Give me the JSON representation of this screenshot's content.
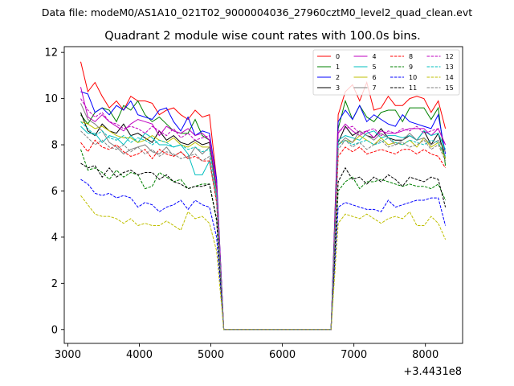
{
  "chart_data": {
    "type": "line",
    "suptitle": "Data file: modeM0/AS1A10_021T02_9000004036_27960cztM0_level2_quad_clean.evt",
    "title": "Quadrant 2 module wise count rates with 100.0s bins.",
    "xlabel": "",
    "ylabel": "",
    "x_offset_label": "+3.4431e8",
    "xlim": [
      2950,
      8520
    ],
    "ylim": [
      -0.6,
      12.25
    ],
    "xticks": [
      3000,
      4000,
      5000,
      6000,
      7000,
      8000
    ],
    "yticks": [
      0,
      2,
      4,
      6,
      8,
      10,
      12
    ],
    "xtick_labels": [
      "3000",
      "4000",
      "5000",
      "6000",
      "7000",
      "8000"
    ],
    "ytick_labels": [
      "0",
      "2",
      "4",
      "6",
      "8",
      "10",
      "12"
    ],
    "grid": false,
    "legend_position": "upper right",
    "x": [
      3180,
      3280,
      3380,
      3480,
      3580,
      3680,
      3780,
      3880,
      3980,
      4080,
      4180,
      4280,
      4380,
      4480,
      4580,
      4680,
      4780,
      4880,
      4980,
      5080,
      5180,
      5280,
      5380,
      5480,
      5580,
      5680,
      5780,
      5880,
      5980,
      6080,
      6180,
      6280,
      6380,
      6480,
      6580,
      6680,
      6780,
      6880,
      6980,
      7080,
      7180,
      7280,
      7380,
      7480,
      7580,
      7680,
      7780,
      7880,
      7980,
      8080,
      8180,
      8280
    ],
    "series": [
      {
        "name": "0",
        "color": "#ff0000",
        "dashed": false,
        "values": [
          11.6,
          10.3,
          10.7,
          10.1,
          9.6,
          9.9,
          9.5,
          10.1,
          9.9,
          9.9,
          9.8,
          9.3,
          9.5,
          9.6,
          9.3,
          9.1,
          9.5,
          9.2,
          9.3,
          6.5,
          0,
          0,
          0,
          0,
          0,
          0,
          0,
          0,
          0,
          0,
          0,
          0,
          0,
          0,
          0,
          0,
          9.3,
          10.3,
          10.6,
          9.9,
          10.7,
          9.5,
          9.6,
          10.1,
          9.7,
          9.7,
          10.0,
          10.1,
          10.0,
          9.4,
          9.9,
          8.7
        ]
      },
      {
        "name": "1",
        "color": "#008000",
        "dashed": false,
        "values": [
          9.3,
          8.9,
          9.4,
          9.6,
          9.5,
          9.0,
          9.7,
          9.5,
          9.9,
          9.3,
          9.0,
          9.2,
          8.9,
          8.6,
          8.5,
          8.5,
          9.1,
          8.4,
          8.2,
          6.2,
          0,
          0,
          0,
          0,
          0,
          0,
          0,
          0,
          0,
          0,
          0,
          0,
          0,
          0,
          0,
          0,
          8.7,
          9.9,
          9.1,
          9.7,
          9.2,
          9.0,
          9.4,
          9.5,
          9.5,
          9.0,
          9.6,
          9.6,
          9.6,
          9.1,
          9.6,
          7.1
        ]
      },
      {
        "name": "2",
        "color": "#0000ff",
        "dashed": false,
        "values": [
          10.3,
          10.2,
          9.4,
          9.6,
          9.3,
          9.7,
          9.5,
          9.9,
          9.3,
          9.2,
          9.1,
          9.5,
          9.6,
          9.0,
          8.6,
          9.2,
          8.4,
          8.6,
          8.5,
          6.5,
          0,
          0,
          0,
          0,
          0,
          0,
          0,
          0,
          0,
          0,
          0,
          0,
          0,
          0,
          0,
          0,
          9.0,
          9.5,
          9.1,
          9.7,
          9.0,
          9.3,
          9.1,
          8.9,
          8.8,
          9.3,
          9.0,
          8.9,
          8.8,
          8.7,
          9.3,
          7.6
        ]
      },
      {
        "name": "3",
        "color": "#000000",
        "dashed": false,
        "values": [
          9.4,
          8.6,
          8.4,
          8.9,
          8.6,
          8.5,
          8.9,
          8.4,
          8.5,
          8.3,
          8.1,
          8.6,
          8.2,
          8.4,
          8.1,
          8.0,
          8.2,
          8.0,
          8.1,
          6.0,
          0,
          0,
          0,
          0,
          0,
          0,
          0,
          0,
          0,
          0,
          0,
          0,
          0,
          0,
          0,
          0,
          8.1,
          8.8,
          8.4,
          8.6,
          8.4,
          8.3,
          8.7,
          8.3,
          8.2,
          8.2,
          8.4,
          8.2,
          8.6,
          8.0,
          8.5,
          7.4
        ]
      },
      {
        "name": "4",
        "color": "#bf00bf",
        "dashed": false,
        "values": [
          10.5,
          9.2,
          9.0,
          9.3,
          9.0,
          8.8,
          8.6,
          8.9,
          9.1,
          9.0,
          8.9,
          8.4,
          8.8,
          8.6,
          8.5,
          8.7,
          8.4,
          8.5,
          8.2,
          6.2,
          0,
          0,
          0,
          0,
          0,
          0,
          0,
          0,
          0,
          0,
          0,
          0,
          0,
          0,
          0,
          0,
          8.5,
          8.9,
          8.6,
          8.4,
          8.6,
          8.3,
          8.6,
          8.5,
          8.5,
          8.6,
          8.7,
          8.7,
          8.7,
          8.4,
          8.7,
          8.0
        ]
      },
      {
        "name": "5",
        "color": "#00bfbf",
        "dashed": false,
        "values": [
          8.8,
          8.5,
          8.5,
          8.1,
          8.4,
          8.3,
          8.0,
          8.4,
          8.1,
          8.5,
          8.3,
          8.0,
          8.0,
          7.9,
          8.0,
          7.6,
          6.7,
          6.7,
          7.3,
          5.6,
          0,
          0,
          0,
          0,
          0,
          0,
          0,
          0,
          0,
          0,
          0,
          0,
          0,
          0,
          0,
          0,
          8.2,
          8.4,
          8.3,
          8.2,
          8.5,
          8.6,
          8.3,
          8.4,
          8.4,
          8.3,
          8.4,
          8.2,
          8.6,
          8.4,
          8.5,
          7.8
        ]
      },
      {
        "name": "6",
        "color": "#bfbf00",
        "dashed": false,
        "values": [
          9.0,
          8.9,
          8.7,
          8.8,
          8.6,
          8.4,
          8.3,
          8.3,
          8.1,
          8.2,
          8.4,
          8.2,
          8.1,
          8.3,
          8.0,
          7.9,
          8.1,
          7.9,
          7.9,
          5.9,
          0,
          0,
          0,
          0,
          0,
          0,
          0,
          0,
          0,
          0,
          0,
          0,
          0,
          0,
          0,
          0,
          8.0,
          8.2,
          8.1,
          8.4,
          8.2,
          8.0,
          8.3,
          8.0,
          8.1,
          8.0,
          8.2,
          7.9,
          8.3,
          7.9,
          8.1,
          7.4
        ]
      },
      {
        "name": "7",
        "color": "#808080",
        "dashed": false,
        "values": [
          9.8,
          9.1,
          8.9,
          8.6,
          8.1,
          7.9,
          7.6,
          7.8,
          7.9,
          8.0,
          7.7,
          7.6,
          7.9,
          7.5,
          7.7,
          7.4,
          7.9,
          7.6,
          7.9,
          5.8,
          0,
          0,
          0,
          0,
          0,
          0,
          0,
          0,
          0,
          0,
          0,
          0,
          0,
          0,
          0,
          0,
          8.0,
          8.3,
          8.1,
          8.6,
          8.4,
          8.2,
          8.5,
          8.3,
          8.0,
          8.2,
          8.5,
          8.2,
          8.3,
          8.0,
          8.2,
          7.7
        ]
      },
      {
        "name": "8",
        "color": "#ff0000",
        "dashed": true,
        "values": [
          8.1,
          7.7,
          8.2,
          7.9,
          7.8,
          8.0,
          7.7,
          7.5,
          7.6,
          7.8,
          7.4,
          7.8,
          7.6,
          7.5,
          7.7,
          7.4,
          7.5,
          7.3,
          7.3,
          5.5,
          0,
          0,
          0,
          0,
          0,
          0,
          0,
          0,
          0,
          0,
          0,
          0,
          0,
          0,
          0,
          0,
          7.5,
          7.9,
          7.7,
          7.9,
          7.6,
          7.7,
          7.8,
          7.7,
          7.6,
          7.8,
          7.8,
          7.6,
          7.8,
          7.6,
          7.5,
          7.0
        ]
      },
      {
        "name": "9",
        "color": "#008000",
        "dashed": true,
        "values": [
          7.8,
          6.9,
          7.0,
          6.8,
          6.5,
          6.9,
          6.6,
          6.8,
          6.7,
          6.1,
          6.2,
          6.8,
          6.6,
          6.4,
          6.5,
          6.1,
          6.2,
          6.3,
          6.3,
          4.7,
          0,
          0,
          0,
          0,
          0,
          0,
          0,
          0,
          0,
          0,
          0,
          0,
          0,
          0,
          0,
          0,
          6.0,
          6.4,
          6.6,
          6.1,
          6.4,
          6.4,
          6.5,
          6.4,
          6.3,
          6.2,
          6.3,
          6.2,
          6.2,
          6.1,
          6.3,
          5.6
        ]
      },
      {
        "name": "10",
        "color": "#0000ff",
        "dashed": true,
        "values": [
          6.5,
          6.3,
          5.9,
          5.8,
          5.9,
          5.7,
          5.8,
          5.7,
          5.3,
          5.5,
          5.4,
          5.1,
          5.3,
          5.4,
          5.6,
          5.2,
          5.6,
          5.4,
          5.3,
          4.0,
          0,
          0,
          0,
          0,
          0,
          0,
          0,
          0,
          0,
          0,
          0,
          0,
          0,
          0,
          0,
          0,
          5.3,
          5.5,
          5.4,
          5.3,
          5.2,
          5.2,
          5.1,
          5.6,
          5.3,
          5.4,
          5.5,
          5.6,
          5.6,
          5.7,
          5.7,
          4.5
        ]
      },
      {
        "name": "11",
        "color": "#000000",
        "dashed": true,
        "values": [
          7.2,
          7.0,
          7.1,
          6.6,
          7.0,
          6.6,
          6.8,
          6.9,
          6.7,
          6.8,
          6.8,
          6.5,
          6.7,
          6.4,
          6.3,
          6.1,
          6.2,
          6.2,
          6.3,
          4.8,
          0,
          0,
          0,
          0,
          0,
          0,
          0,
          0,
          0,
          0,
          0,
          0,
          0,
          0,
          0,
          0,
          6.4,
          7.0,
          6.5,
          6.6,
          6.3,
          6.6,
          6.4,
          6.7,
          6.5,
          6.2,
          6.6,
          6.5,
          6.4,
          6.6,
          6.5,
          5.3
        ]
      },
      {
        "name": "12",
        "color": "#bf00bf",
        "dashed": true,
        "values": [
          10.0,
          9.5,
          9.2,
          9.4,
          9.0,
          8.9,
          8.7,
          8.8,
          8.7,
          8.5,
          8.8,
          8.6,
          8.4,
          8.7,
          8.3,
          8.5,
          8.2,
          8.3,
          8.4,
          6.3,
          0,
          0,
          0,
          0,
          0,
          0,
          0,
          0,
          0,
          0,
          0,
          0,
          0,
          0,
          0,
          0,
          8.6,
          8.7,
          8.8,
          8.5,
          8.6,
          8.7,
          8.4,
          8.6,
          8.5,
          8.7,
          8.6,
          8.8,
          8.5,
          8.6,
          8.7,
          8.0
        ]
      },
      {
        "name": "13",
        "color": "#00bfbf",
        "dashed": true,
        "values": [
          9.0,
          8.7,
          8.4,
          8.6,
          8.3,
          8.2,
          8.4,
          8.1,
          8.3,
          8.2,
          8.0,
          8.2,
          8.1,
          7.9,
          8.0,
          7.8,
          7.9,
          7.7,
          7.8,
          5.8,
          0,
          0,
          0,
          0,
          0,
          0,
          0,
          0,
          0,
          0,
          0,
          0,
          0,
          0,
          0,
          0,
          8.0,
          8.2,
          8.0,
          8.1,
          8.2,
          8.0,
          8.1,
          8.3,
          8.1,
          8.0,
          8.2,
          8.1,
          8.0,
          8.2,
          8.1,
          7.5
        ]
      },
      {
        "name": "14",
        "color": "#bfbf00",
        "dashed": true,
        "values": [
          5.8,
          5.4,
          5.0,
          4.9,
          4.9,
          4.8,
          4.6,
          4.8,
          4.5,
          4.6,
          4.5,
          4.5,
          4.7,
          4.5,
          4.3,
          5.1,
          4.8,
          4.9,
          4.6,
          3.4,
          0,
          0,
          0,
          0,
          0,
          0,
          0,
          0,
          0,
          0,
          0,
          0,
          0,
          0,
          0,
          0,
          4.6,
          5.0,
          4.9,
          4.8,
          5.0,
          4.8,
          4.6,
          4.8,
          4.9,
          4.8,
          5.1,
          4.5,
          4.5,
          4.9,
          4.6,
          3.9
        ]
      },
      {
        "name": "15",
        "color": "#808080",
        "dashed": true,
        "values": [
          8.6,
          8.3,
          8.0,
          8.2,
          7.9,
          7.8,
          8.0,
          7.7,
          7.9,
          7.6,
          7.8,
          7.5,
          7.7,
          7.6,
          7.4,
          7.5,
          7.6,
          7.3,
          7.5,
          5.6,
          0,
          0,
          0,
          0,
          0,
          0,
          0,
          0,
          0,
          0,
          0,
          0,
          0,
          0,
          0,
          0,
          7.8,
          8.2,
          7.9,
          8.1,
          7.8,
          8.0,
          8.2,
          7.9,
          8.0,
          8.1,
          7.9,
          8.0,
          8.2,
          7.8,
          8.0,
          7.3
        ]
      }
    ]
  }
}
